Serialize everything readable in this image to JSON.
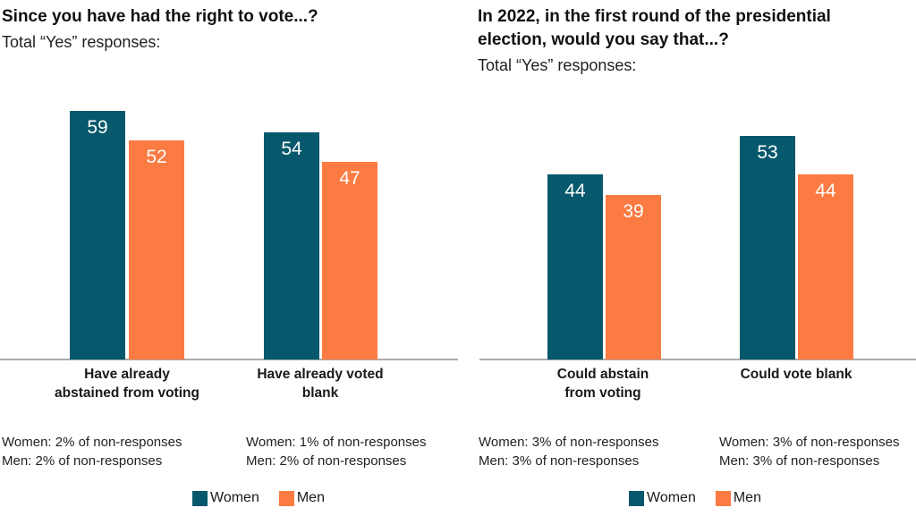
{
  "colors": {
    "women": "#07586C",
    "men": "#FC7B42",
    "axis": "#ABABAB",
    "text": "#1A1A1A"
  },
  "chart_data": [
    {
      "type": "bar",
      "title": "Since you have had the right to vote...?",
      "title_lines": [
        "Since you have had the right to vote...?"
      ],
      "subtitle": "Total “Yes” responses:",
      "categories": [
        "Have already abstained from voting",
        "Have already voted blank"
      ],
      "category_lines": [
        [
          "Have already",
          "abstained from voting"
        ],
        [
          "Have already voted",
          "blank"
        ]
      ],
      "series": [
        {
          "name": "Women",
          "color": "#07586C",
          "values": [
            59,
            54
          ]
        },
        {
          "name": "Men",
          "color": "#FC7B42",
          "values": [
            52,
            47
          ]
        }
      ],
      "footnotes": [
        [
          "Women: 2% of non-responses",
          "Men: 2% of non-responses"
        ],
        [
          "Women: 1% of non-responses",
          "Men: 2% of non-responses"
        ]
      ],
      "ylim": [
        0,
        62
      ],
      "grid": false,
      "value_labels": "inside-top",
      "legend_position": "bottom"
    },
    {
      "type": "bar",
      "title": "In 2022, in the first round of the presidential election, would you say that...?",
      "title_lines": [
        "In 2022, in the first round of the presidential",
        "election, would you say that...?"
      ],
      "subtitle": "Total “Yes” responses:",
      "categories": [
        "Could abstain from voting",
        "Could vote blank"
      ],
      "category_lines": [
        [
          "Could abstain",
          "from voting"
        ],
        [
          "Could vote blank",
          ""
        ]
      ],
      "series": [
        {
          "name": "Women",
          "color": "#07586C",
          "values": [
            44,
            53
          ]
        },
        {
          "name": "Men",
          "color": "#FC7B42",
          "values": [
            39,
            44
          ]
        }
      ],
      "footnotes": [
        [
          "Women: 3% of non-responses",
          "Men: 3% of non-responses"
        ],
        [
          "Women: 3% of non-responses",
          "Men: 3% of non-responses"
        ]
      ],
      "ylim": [
        0,
        62
      ],
      "grid": false,
      "value_labels": "inside-top",
      "legend_position": "bottom"
    }
  ]
}
